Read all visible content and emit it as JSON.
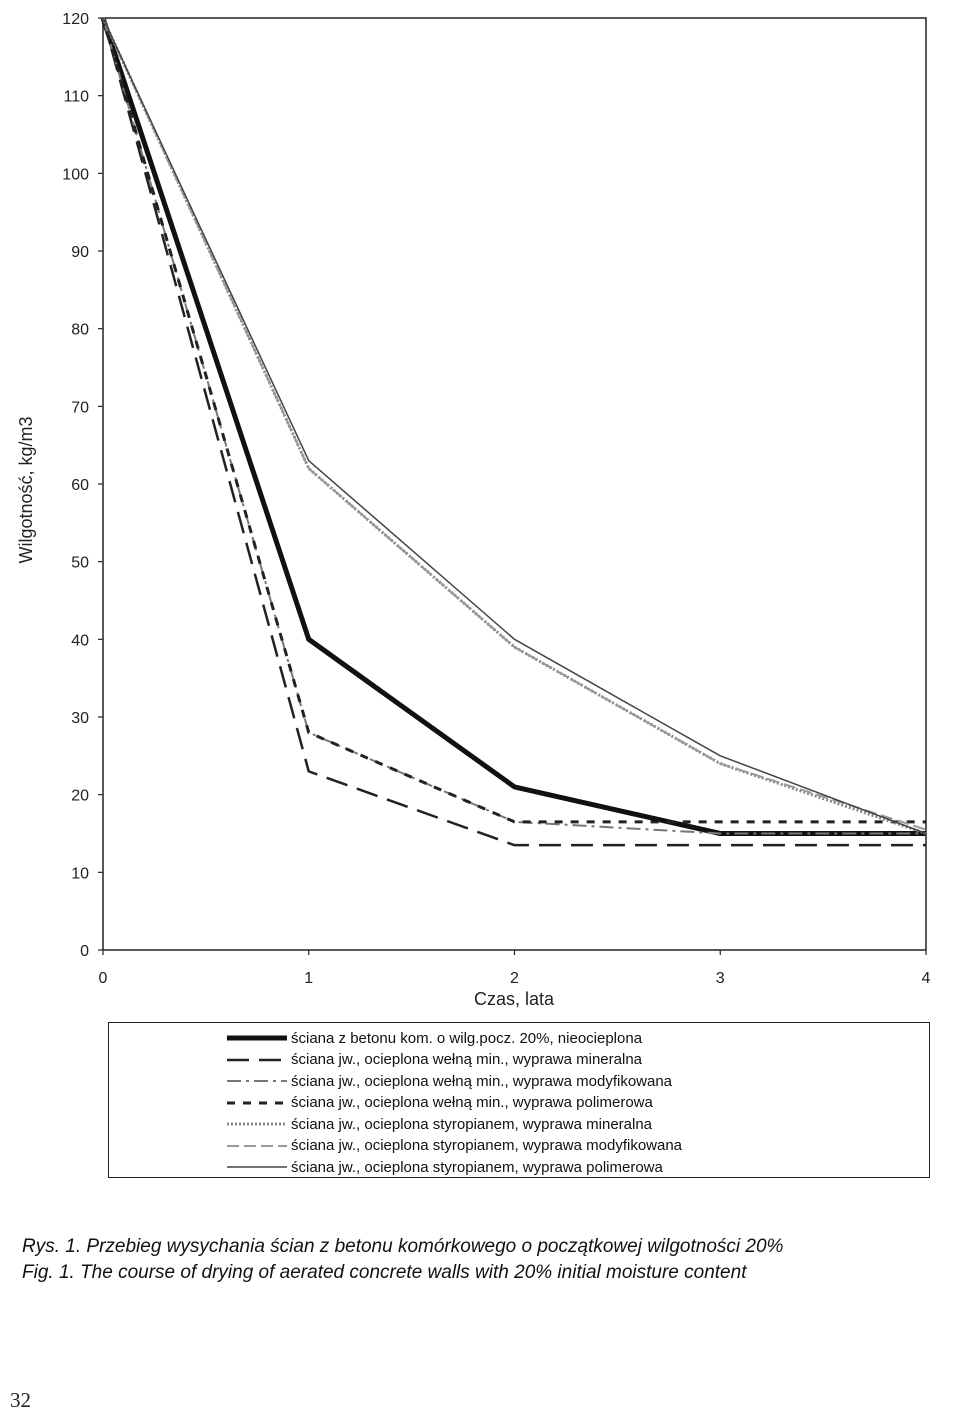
{
  "chart_data": {
    "type": "line",
    "title": "",
    "xlabel": "Czas, lata",
    "ylabel": "Wilgotność, kg/m3",
    "xlim": [
      0,
      4
    ],
    "ylim": [
      0,
      120
    ],
    "x_ticks": [
      "0",
      "1",
      "2",
      "3",
      "4"
    ],
    "y_ticks": [
      "0",
      "10",
      "20",
      "30",
      "40",
      "50",
      "60",
      "70",
      "80",
      "90",
      "100",
      "110",
      "120"
    ],
    "grid": false,
    "legend_position": "bottom",
    "x": [
      0,
      1,
      2,
      3,
      4
    ],
    "series": [
      {
        "name": "ściana z betonu kom. o wilg.pocz. 20%, nieocieplona",
        "values": [
          120,
          40,
          21,
          15,
          15
        ],
        "style": "solid-thick",
        "color": "#111111"
      },
      {
        "name": "ściana jw., ocieplona wełną min., wyprawa mineralna",
        "values": [
          120,
          23,
          13.5,
          13.5,
          13.5
        ],
        "style": "long-dash",
        "color": "#222222"
      },
      {
        "name": "ściana jw., ocieplona wełną min., wyprawa modyfikowana",
        "values": [
          120,
          28,
          16.5,
          15,
          15
        ],
        "style": "dash-dot-gray",
        "color": "#777777"
      },
      {
        "name": "ściana jw., ocieplona wełną min., wyprawa polimerowa",
        "values": [
          120,
          28,
          16.5,
          16.5,
          16.5
        ],
        "style": "short-dash",
        "color": "#222222"
      },
      {
        "name": "ściana jw., ocieplona styropianem, wyprawa mineralna",
        "values": [
          120,
          62,
          39,
          24,
          15
        ],
        "style": "dotted-gray",
        "color": "#888888"
      },
      {
        "name": "ściana jw., ocieplona styropianem, wyprawa modyfikowana",
        "values": [
          120,
          62,
          39,
          24,
          15.5
        ],
        "style": "dash-gray",
        "color": "#999999"
      },
      {
        "name": "ściana jw., ocieplona styropianem, wyprawa polimerowa",
        "values": [
          120,
          63,
          40,
          25,
          15
        ],
        "style": "solid-thin",
        "color": "#444444"
      }
    ]
  },
  "caption": {
    "pl": "Rys. 1. Przebieg wysychania ścian z betonu komórkowego o początkowej wilgotności 20%",
    "en": "Fig. 1. The course of drying of aerated concrete walls with 20% initial moisture content"
  },
  "page_number": "32"
}
